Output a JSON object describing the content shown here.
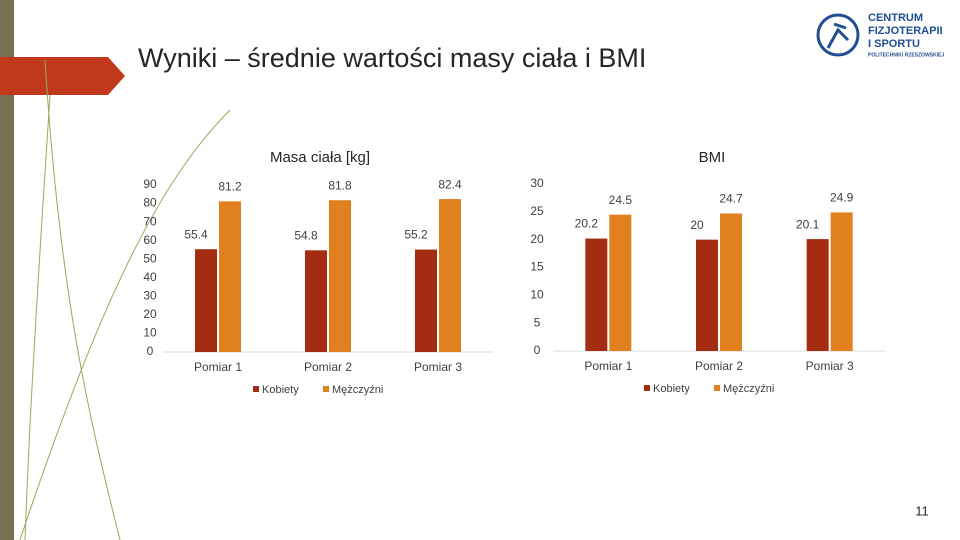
{
  "slide": {
    "title": "Wyniki – średnie wartości masy ciała i BMI",
    "page_number": "11",
    "logo": [
      "CENTRUM",
      "FIZJOTERAPII",
      "I SPORTU",
      "POLITECHNIKI RZESZOWSKIEJ"
    ]
  },
  "chart_data": [
    {
      "type": "bar",
      "title": "Masa ciała [kg]",
      "categories": [
        "Pomiar 1",
        "Pomiar 2",
        "Pomiar 3"
      ],
      "series": [
        {
          "name": "Kobiety",
          "color": "#a32c12",
          "values": [
            55.4,
            54.8,
            55.2
          ]
        },
        {
          "name": "Mężczyźni",
          "color": "#e0801e",
          "values": [
            81.2,
            81.8,
            82.4
          ]
        }
      ],
      "ylim": [
        0,
        90
      ],
      "yticks": [
        0,
        10,
        20,
        30,
        40,
        50,
        60,
        70,
        80,
        90
      ],
      "grid": false,
      "legend": "bottom"
    },
    {
      "type": "bar",
      "title": "BMI",
      "categories": [
        "Pomiar 1",
        "Pomiar 2",
        "Pomiar 3"
      ],
      "series": [
        {
          "name": "Kobiety",
          "color": "#a32c12",
          "values": [
            20.2,
            20,
            20.1
          ]
        },
        {
          "name": "Mężczyźni",
          "color": "#e0801e",
          "values": [
            24.5,
            24.7,
            24.9
          ]
        }
      ],
      "ylim": [
        0,
        30
      ],
      "yticks": [
        0,
        5,
        10,
        15,
        20,
        25,
        30
      ],
      "grid": false,
      "legend": "bottom"
    }
  ]
}
